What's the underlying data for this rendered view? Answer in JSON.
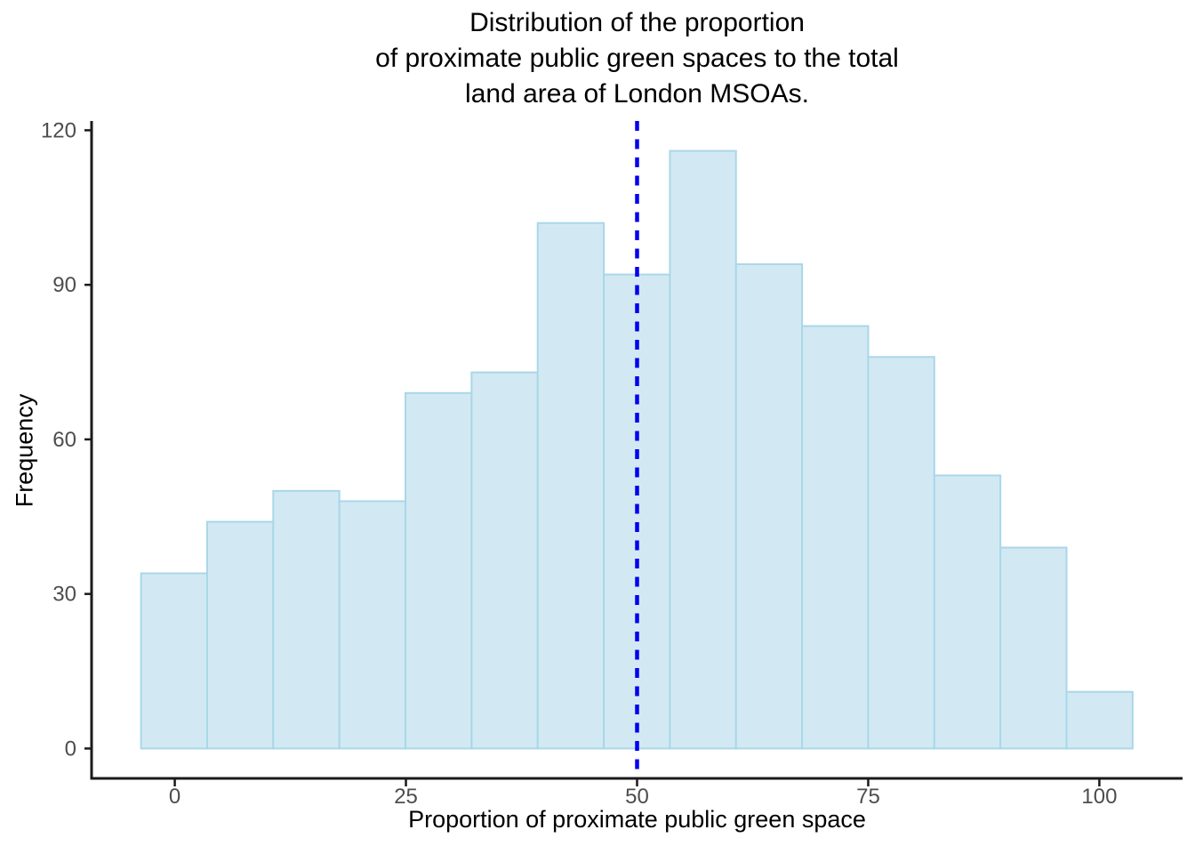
{
  "title": "Distribution of the proportion\nof proximate public green spaces to the total\nland area of London MSOAs.",
  "chart_data": {
    "type": "bar",
    "subtype": "histogram",
    "title": "Distribution of the proportion\nof proximate public green spaces to the total\nland area of London MSOAs.",
    "xlabel": "Proportion of proximate public green space",
    "ylabel": "Frequency",
    "bin_start": -3.65,
    "bin_width": 7.15,
    "counts": [
      34,
      44,
      50,
      48,
      69,
      73,
      102,
      92,
      116,
      94,
      82,
      76,
      53,
      39,
      11
    ],
    "x_ticks": [
      0,
      25,
      50,
      75,
      100
    ],
    "y_ticks": [
      0,
      30,
      60,
      90,
      120
    ],
    "xlim": [
      -9,
      109
    ],
    "ylim": [
      -5.8,
      121.8
    ],
    "vline": {
      "x": 50,
      "style": "dashed",
      "color": "#0000EE"
    },
    "grid": false,
    "legend": false,
    "colors": {
      "bar_fill": "#d2e9f3",
      "bar_stroke": "#a9d7e8",
      "vline": "#0000EE",
      "axis": "#1a1a1a",
      "tick_label": "#4d4d4d",
      "text": "#000000",
      "background": "#ffffff"
    }
  }
}
